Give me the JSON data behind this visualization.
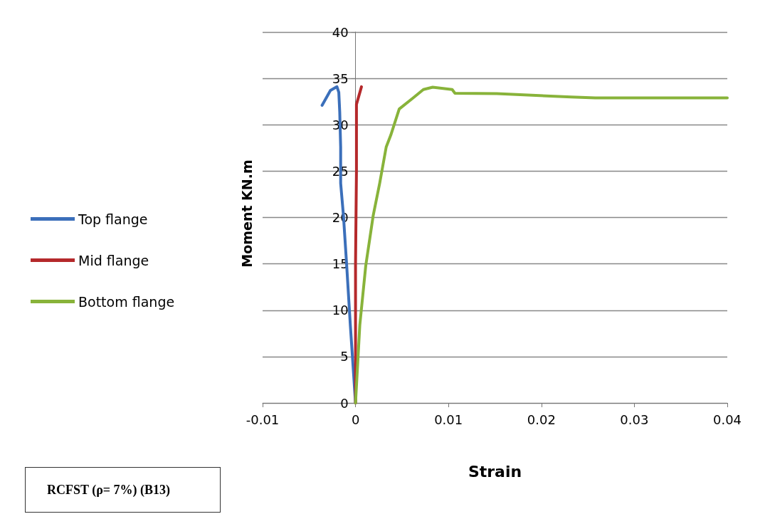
{
  "chart_data": {
    "type": "line",
    "xlabel": "Strain",
    "ylabel": "Moment KN.m",
    "annotations": [
      "RCFST (ρ= 7%) (B13)"
    ],
    "xlim": [
      -0.01,
      0.04
    ],
    "xticks": [
      -0.01,
      0,
      0.01,
      0.02,
      0.03,
      0.04
    ],
    "ylim": [
      0,
      40
    ],
    "yticks": [
      0,
      5,
      10,
      15,
      20,
      25,
      30,
      35,
      40
    ],
    "grid": "y",
    "legend": "left",
    "marker": "none",
    "line_style": "solid",
    "series": [
      {
        "name": "Top flange",
        "color": "#3b6fba",
        "x": [
          0,
          -0.00056,
          -0.00095,
          -0.0013,
          -0.0016,
          -0.0016,
          -0.0017,
          -0.0018,
          -0.002,
          -0.0027,
          -0.0036
        ],
        "values": [
          0,
          8.4,
          14.8,
          20.2,
          23.7,
          27.6,
          31.4,
          33.5,
          34.1,
          33.7,
          32.1
        ]
      },
      {
        "name": "Mid flange",
        "color": "#b5292b",
        "x": [
          0,
          0,
          0.0001,
          0.0001,
          0.00064
        ],
        "values": [
          0,
          15,
          25,
          32.2,
          34.1
        ]
      },
      {
        "name": "Bottom flange",
        "color": "#88b33a",
        "x": [
          0,
          0.00046,
          0.0011,
          0.0019,
          0.0026,
          0.0033,
          0.0038,
          0.0047,
          0.0062,
          0.0073,
          0.0083,
          0.0104,
          0.0107,
          0.0152,
          0.0232,
          0.0258,
          0.04
        ],
        "values": [
          0,
          8.4,
          14.8,
          20.2,
          23.7,
          27.6,
          28.9,
          31.7,
          32.9,
          33.8,
          34.05,
          33.8,
          33.4,
          33.35,
          33.0,
          32.9,
          32.9
        ]
      }
    ]
  }
}
